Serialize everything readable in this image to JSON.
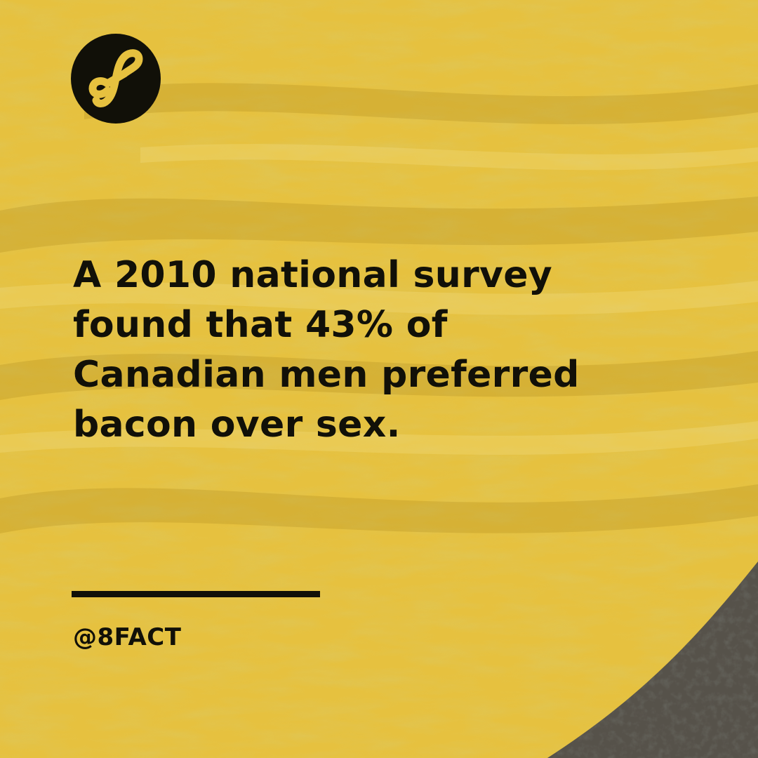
{
  "brand": {
    "logo_icon": "infinity-eight-icon",
    "handle": "@8FACT"
  },
  "fact": {
    "lines": [
      "A 2010 national survey",
      "found that 43% of",
      "Canadian men preferred",
      "bacon over sex."
    ]
  },
  "colors": {
    "background_yellow": "#e6c13f",
    "text_dark": "#111008",
    "photo_dark": "#2b2924"
  }
}
